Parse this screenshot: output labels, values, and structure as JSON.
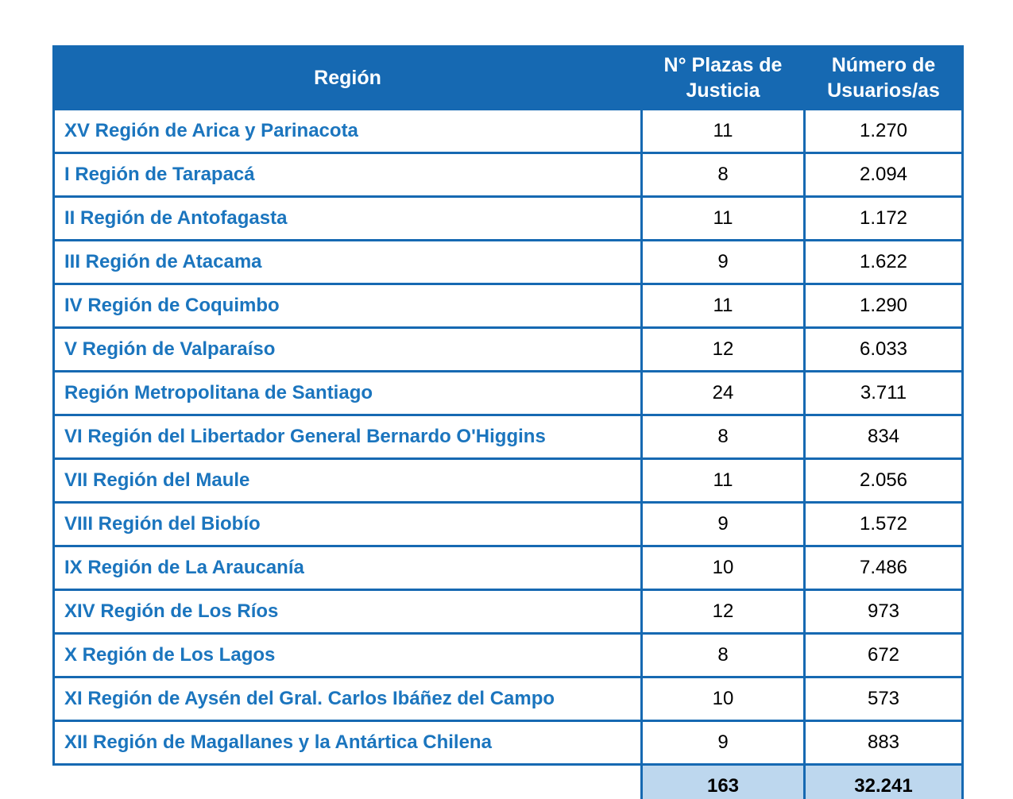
{
  "colors": {
    "accent_blue": "#1669B2",
    "region_text_blue": "#1B75BE",
    "header_text": "#FFFFFF",
    "total_row_bg": "#BDD7EE",
    "value_text": "#000000",
    "page_bg": "#FFFFFF"
  },
  "table": {
    "headers": [
      "Región",
      "N° Plazas de Justicia",
      "Número de Usuarios/as"
    ],
    "rows": [
      {
        "region": "XV Región de Arica y Parinacota",
        "plazas": "11",
        "usuarios": "1.270"
      },
      {
        "region": "I Región de Tarapacá",
        "plazas": "8",
        "usuarios": "2.094"
      },
      {
        "region": "II Región de Antofagasta",
        "plazas": "11",
        "usuarios": "1.172"
      },
      {
        "region": "III Región de Atacama",
        "plazas": "9",
        "usuarios": "1.622"
      },
      {
        "region": "IV Región de Coquimbo",
        "plazas": "11",
        "usuarios": "1.290"
      },
      {
        "region": "V Región de Valparaíso",
        "plazas": "12",
        "usuarios": "6.033"
      },
      {
        "region": "Región Metropolitana de Santiago",
        "plazas": "24",
        "usuarios": "3.711"
      },
      {
        "region": "VI Región del Libertador General Bernardo O'Higgins",
        "plazas": "8",
        "usuarios": "834"
      },
      {
        "region": "VII Región del Maule",
        "plazas": "11",
        "usuarios": "2.056"
      },
      {
        "region": "VIII Región del Biobío",
        "plazas": "9",
        "usuarios": "1.572"
      },
      {
        "region": "IX Región de La Araucanía",
        "plazas": "10",
        "usuarios": "7.486"
      },
      {
        "region": "XIV Región de Los Ríos",
        "plazas": "12",
        "usuarios": "973"
      },
      {
        "region": "X Región de Los Lagos",
        "plazas": "8",
        "usuarios": "672"
      },
      {
        "region": "XI Región de Aysén del Gral. Carlos Ibáñez del Campo",
        "plazas": "10",
        "usuarios": "573"
      },
      {
        "region": "XII Región de Magallanes y la Antártica Chilena",
        "plazas": "9",
        "usuarios": "883"
      }
    ],
    "total": {
      "plazas": "163",
      "usuarios": "32.241"
    }
  },
  "chart_data": {
    "type": "table",
    "columns": [
      "Región",
      "N° Plazas de Justicia",
      "Número de Usuarios/as"
    ],
    "rows": [
      [
        "XV Región de Arica y Parinacota",
        11,
        1270
      ],
      [
        "I Región de Tarapacá",
        8,
        2094
      ],
      [
        "II Región de Antofagasta",
        11,
        1172
      ],
      [
        "III Región de Atacama",
        9,
        1622
      ],
      [
        "IV Región de Coquimbo",
        11,
        1290
      ],
      [
        "V Región de Valparaíso",
        12,
        6033
      ],
      [
        "Región Metropolitana de Santiago",
        24,
        3711
      ],
      [
        "VI Región del Libertador General Bernardo O'Higgins",
        8,
        834
      ],
      [
        "VII Región del Maule",
        11,
        2056
      ],
      [
        "VIII Región del Biobío",
        9,
        1572
      ],
      [
        "IX Región de La Araucanía",
        10,
        7486
      ],
      [
        "XIV Región de Los Ríos",
        12,
        973
      ],
      [
        "X Región de Los Lagos",
        8,
        672
      ],
      [
        "XI Región de Aysén del Gral. Carlos Ibáñez del Campo",
        10,
        573
      ],
      [
        "XII Región de Magallanes y la Antártica Chilena",
        9,
        883
      ]
    ],
    "totals": [
      163,
      32241
    ]
  }
}
